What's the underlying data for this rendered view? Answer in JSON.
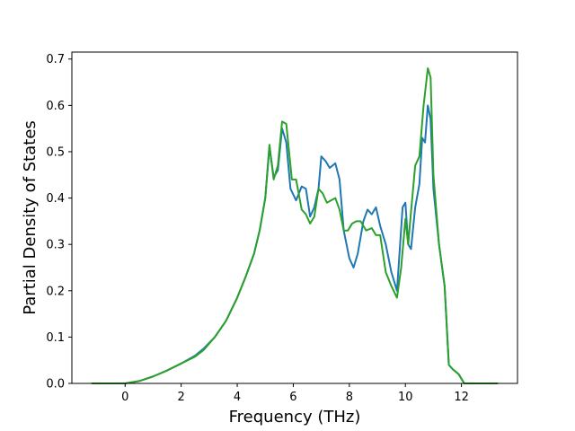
{
  "chart_data": {
    "type": "line",
    "title": "",
    "xlabel": "Frequency (THz)",
    "ylabel": "Partial Density of States",
    "xlim": [
      -1.9,
      14.0
    ],
    "ylim": [
      0.0,
      0.715
    ],
    "xticks": [
      0,
      2,
      4,
      6,
      8,
      10,
      12
    ],
    "yticks": [
      0.0,
      0.1,
      0.2,
      0.3,
      0.4,
      0.5,
      0.6,
      0.7
    ],
    "xtick_labels": [
      "0",
      "2",
      "4",
      "6",
      "8",
      "10",
      "12"
    ],
    "ytick_labels": [
      "0.0",
      "0.1",
      "0.2",
      "0.3",
      "0.4",
      "0.5",
      "0.6",
      "0.7"
    ],
    "grid": false,
    "legend": "none",
    "series": [
      {
        "color": "#1f77b4",
        "x": [
          -1.2,
          0.0,
          0.5,
          1.0,
          1.5,
          2.0,
          2.5,
          2.8,
          3.2,
          3.6,
          4.0,
          4.3,
          4.6,
          4.8,
          5.0,
          5.15,
          5.3,
          5.45,
          5.6,
          5.75,
          5.9,
          6.1,
          6.3,
          6.45,
          6.6,
          6.75,
          6.9,
          7.0,
          7.15,
          7.3,
          7.5,
          7.65,
          7.8,
          8.0,
          8.15,
          8.3,
          8.5,
          8.65,
          8.8,
          8.95,
          9.1,
          9.3,
          9.5,
          9.7,
          9.8,
          9.9,
          10.0,
          10.1,
          10.2,
          10.35,
          10.5,
          10.6,
          10.7,
          10.8,
          10.9,
          11.0,
          11.2,
          11.4,
          11.55,
          11.7,
          11.9,
          12.1,
          12.4,
          13.3
        ],
        "y": [
          0.0,
          0.0,
          0.005,
          0.015,
          0.028,
          0.043,
          0.06,
          0.075,
          0.1,
          0.135,
          0.185,
          0.23,
          0.28,
          0.33,
          0.4,
          0.51,
          0.445,
          0.46,
          0.55,
          0.52,
          0.42,
          0.395,
          0.425,
          0.42,
          0.36,
          0.38,
          0.42,
          0.49,
          0.48,
          0.465,
          0.475,
          0.44,
          0.33,
          0.27,
          0.25,
          0.28,
          0.35,
          0.375,
          0.365,
          0.38,
          0.34,
          0.3,
          0.24,
          0.2,
          0.29,
          0.38,
          0.39,
          0.3,
          0.29,
          0.38,
          0.43,
          0.53,
          0.52,
          0.6,
          0.57,
          0.42,
          0.3,
          0.21,
          0.04,
          0.03,
          0.02,
          0.0,
          0.0,
          0.0
        ]
      },
      {
        "color": "#2ca02c",
        "x": [
          -1.2,
          0.0,
          0.5,
          1.0,
          1.5,
          2.0,
          2.5,
          2.8,
          3.2,
          3.6,
          4.0,
          4.3,
          4.6,
          4.8,
          5.0,
          5.15,
          5.3,
          5.45,
          5.6,
          5.75,
          5.95,
          6.1,
          6.3,
          6.45,
          6.6,
          6.75,
          6.9,
          7.05,
          7.2,
          7.35,
          7.5,
          7.65,
          7.8,
          7.95,
          8.1,
          8.25,
          8.4,
          8.6,
          8.8,
          8.95,
          9.1,
          9.3,
          9.5,
          9.7,
          9.85,
          10.0,
          10.1,
          10.2,
          10.35,
          10.5,
          10.65,
          10.8,
          10.9,
          11.0,
          11.2,
          11.4,
          11.55,
          11.7,
          11.9,
          12.1,
          12.4,
          13.3
        ],
        "y": [
          0.0,
          0.0,
          0.005,
          0.015,
          0.028,
          0.043,
          0.058,
          0.072,
          0.1,
          0.135,
          0.185,
          0.23,
          0.28,
          0.33,
          0.4,
          0.515,
          0.44,
          0.47,
          0.565,
          0.56,
          0.44,
          0.44,
          0.375,
          0.365,
          0.345,
          0.36,
          0.42,
          0.41,
          0.39,
          0.395,
          0.4,
          0.375,
          0.33,
          0.33,
          0.345,
          0.35,
          0.35,
          0.33,
          0.335,
          0.32,
          0.32,
          0.24,
          0.21,
          0.185,
          0.25,
          0.355,
          0.3,
          0.37,
          0.47,
          0.49,
          0.6,
          0.68,
          0.66,
          0.45,
          0.3,
          0.21,
          0.04,
          0.03,
          0.02,
          0.0,
          0.0,
          0.0
        ]
      }
    ]
  }
}
